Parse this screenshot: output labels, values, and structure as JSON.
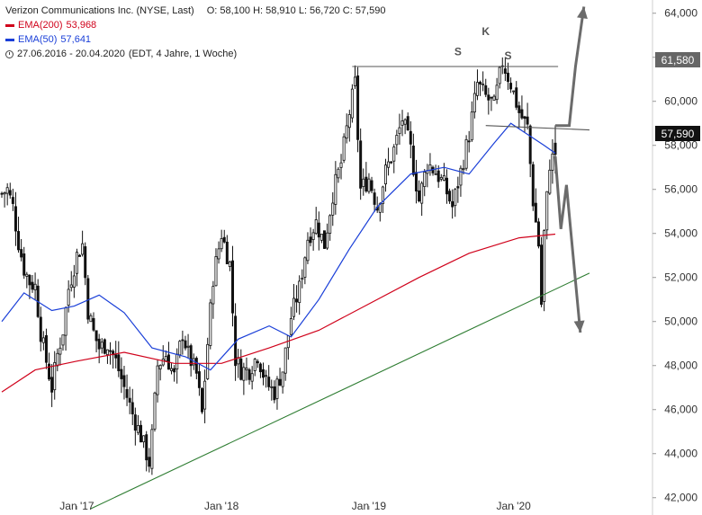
{
  "legend": {
    "title": "Verizon Communications Inc. (NYSE, Last)",
    "ohlc": "O: 58,100  H: 58,910  L: 56,720  C: 57,590",
    "ema200_label": "EMA(200)",
    "ema200_value": "53,968",
    "ema50_label": "EMA(50)",
    "ema50_value": "57,641",
    "period": "27.06.2016 - 20.04.2020",
    "period_detail": "(EDT, 4 Jahre, 1 Woche)",
    "colors": {
      "ema200": "#d0021b",
      "ema50": "#1a3fd8",
      "trend": "#2e7d32",
      "arrow": "#6b6b6b"
    }
  },
  "annotations": {
    "s1": "S",
    "k": "K",
    "s2": "S"
  },
  "price_tags": {
    "resistance": "61,580",
    "last": "57,590"
  },
  "chart_data": {
    "type": "candlestick",
    "title": "Verizon Communications Inc. (NYSE, Last)",
    "interval": "1 Woche",
    "x_range": [
      "2016-06-27",
      "2020-04-20"
    ],
    "y_range": [
      41.5,
      64.6
    ],
    "y_ticks": [
      "42,000",
      "44,000",
      "46,000",
      "48,000",
      "50,000",
      "52,000",
      "54,000",
      "56,000",
      "58,000",
      "60,000",
      "62,000",
      "64,000"
    ],
    "x_ticks": [
      "Jan '17",
      "Jan '18",
      "Jan '19",
      "Jan '20"
    ],
    "close_path": [
      [
        "2016-06-27",
        55.8
      ],
      [
        "2016-07-11",
        56.0
      ],
      [
        "2016-07-25",
        55.2
      ],
      [
        "2016-08-08",
        53.6
      ],
      [
        "2016-08-22",
        52.4
      ],
      [
        "2016-09-05",
        51.8
      ],
      [
        "2016-09-19",
        51.6
      ],
      [
        "2016-10-03",
        49.5
      ],
      [
        "2016-10-17",
        48.2
      ],
      [
        "2016-10-31",
        47.0
      ],
      [
        "2016-11-14",
        48.5
      ],
      [
        "2016-11-28",
        49.6
      ],
      [
        "2016-12-12",
        51.5
      ],
      [
        "2017-01-02",
        53.0
      ],
      [
        "2017-01-16",
        53.5
      ],
      [
        "2017-01-30",
        50.5
      ],
      [
        "2017-02-13",
        49.5
      ],
      [
        "2017-02-27",
        48.8
      ],
      [
        "2017-03-20",
        49.0
      ],
      [
        "2017-04-10",
        48.2
      ],
      [
        "2017-05-01",
        47.0
      ],
      [
        "2017-05-22",
        45.8
      ],
      [
        "2017-06-12",
        44.8
      ],
      [
        "2017-07-03",
        43.6
      ],
      [
        "2017-07-10",
        44.8
      ],
      [
        "2017-07-24",
        48.0
      ],
      [
        "2017-08-14",
        48.5
      ],
      [
        "2017-09-04",
        47.5
      ],
      [
        "2017-09-25",
        49.5
      ],
      [
        "2017-10-09",
        48.5
      ],
      [
        "2017-10-30",
        47.6
      ],
      [
        "2017-11-13",
        45.8
      ],
      [
        "2017-11-27",
        49.0
      ],
      [
        "2017-12-11",
        52.0
      ],
      [
        "2018-01-01",
        54.0
      ],
      [
        "2018-01-22",
        52.6
      ],
      [
        "2018-02-05",
        48.3
      ],
      [
        "2018-02-19",
        47.8
      ],
      [
        "2018-03-12",
        47.8
      ],
      [
        "2018-04-02",
        48.5
      ],
      [
        "2018-04-23",
        47.2
      ],
      [
        "2018-05-14",
        46.8
      ],
      [
        "2018-06-04",
        47.8
      ],
      [
        "2018-06-25",
        50.2
      ],
      [
        "2018-07-16",
        51.5
      ],
      [
        "2018-08-06",
        53.8
      ],
      [
        "2018-08-27",
        54.5
      ],
      [
        "2018-09-17",
        53.5
      ],
      [
        "2018-10-08",
        55.8
      ],
      [
        "2018-10-29",
        57.2
      ],
      [
        "2018-11-19",
        59.5
      ],
      [
        "2018-12-03",
        60.8
      ],
      [
        "2018-12-17",
        56.0
      ],
      [
        "2019-01-07",
        56.5
      ],
      [
        "2019-01-28",
        55.2
      ],
      [
        "2019-02-18",
        56.8
      ],
      [
        "2019-03-11",
        57.8
      ],
      [
        "2019-04-01",
        59.2
      ],
      [
        "2019-04-22",
        57.8
      ],
      [
        "2019-05-13",
        55.5
      ],
      [
        "2019-06-03",
        57.2
      ],
      [
        "2019-06-24",
        56.8
      ],
      [
        "2019-07-15",
        56.2
      ],
      [
        "2019-08-05",
        55.2
      ],
      [
        "2019-08-26",
        56.8
      ],
      [
        "2019-09-16",
        58.5
      ],
      [
        "2019-10-07",
        60.8
      ],
      [
        "2019-10-28",
        60.2
      ],
      [
        "2019-11-18",
        59.8
      ],
      [
        "2019-12-09",
        61.8
      ],
      [
        "2019-12-30",
        60.8
      ],
      [
        "2020-01-20",
        59.5
      ],
      [
        "2020-02-10",
        58.8
      ],
      [
        "2020-02-24",
        55.5
      ],
      [
        "2020-03-09",
        53.5
      ],
      [
        "2020-03-16",
        50.8
      ],
      [
        "2020-03-23",
        54.0
      ],
      [
        "2020-04-06",
        57.2
      ],
      [
        "2020-04-20",
        57.59
      ]
    ],
    "last_candle": {
      "date": "2020-04-20",
      "open": 58.1,
      "high": 58.91,
      "low": 56.72,
      "close": 57.59
    },
    "series": [
      {
        "name": "EMA(200)",
        "color": "#d0021b",
        "points": [
          [
            "2016-06-27",
            46.8
          ],
          [
            "2016-09-19",
            47.8
          ],
          [
            "2017-01-02",
            48.2
          ],
          [
            "2017-05-01",
            48.6
          ],
          [
            "2017-09-04",
            48.1
          ],
          [
            "2018-01-01",
            48.1
          ],
          [
            "2018-05-01",
            48.8
          ],
          [
            "2018-09-03",
            49.6
          ],
          [
            "2019-01-07",
            50.8
          ],
          [
            "2019-05-13",
            52.0
          ],
          [
            "2019-09-16",
            53.1
          ],
          [
            "2020-01-20",
            53.8
          ],
          [
            "2020-04-20",
            53.968
          ]
        ]
      },
      {
        "name": "EMA(50)",
        "color": "#1a3fd8",
        "points": [
          [
            "2016-06-27",
            50.0
          ],
          [
            "2016-08-22",
            51.3
          ],
          [
            "2016-10-31",
            50.5
          ],
          [
            "2016-12-26",
            50.7
          ],
          [
            "2017-02-27",
            51.2
          ],
          [
            "2017-05-01",
            50.4
          ],
          [
            "2017-07-10",
            48.8
          ],
          [
            "2017-10-02",
            48.4
          ],
          [
            "2017-12-04",
            47.8
          ],
          [
            "2018-02-12",
            49.2
          ],
          [
            "2018-05-01",
            49.8
          ],
          [
            "2018-06-25",
            49.3
          ],
          [
            "2018-09-03",
            51.0
          ],
          [
            "2018-11-19",
            53.3
          ],
          [
            "2019-01-28",
            55.2
          ],
          [
            "2019-04-22",
            56.7
          ],
          [
            "2019-07-15",
            57.0
          ],
          [
            "2019-09-16",
            56.7
          ],
          [
            "2019-11-18",
            58.1
          ],
          [
            "2019-12-30",
            59.0
          ],
          [
            "2020-02-10",
            58.5
          ],
          [
            "2020-03-23",
            58.0
          ],
          [
            "2020-04-20",
            57.641
          ]
        ]
      }
    ],
    "trend_lines": [
      {
        "name": "resistance",
        "from": [
          "2018-11-26",
          61.58
        ],
        "to": [
          "2020-04-27",
          61.58
        ],
        "color": "#555555"
      },
      {
        "name": "neckline",
        "from": [
          "2019-10-28",
          58.9
        ],
        "to": [
          "2020-07-15",
          58.7
        ],
        "color": "#555555"
      },
      {
        "name": "support",
        "from": [
          "2017-02-06",
          41.5
        ],
        "to": [
          "2020-07-15",
          52.2
        ],
        "color": "#2e7d32"
      }
    ],
    "scenario_arrows": [
      {
        "name": "bullish",
        "points": [
          [
            "2020-04-20",
            58.9
          ],
          [
            "2020-05-25",
            58.9
          ],
          [
            "2020-06-10",
            61.6
          ],
          [
            "2020-07-01",
            64.3
          ]
        ]
      },
      {
        "name": "bearish",
        "points": [
          [
            "2020-04-20",
            57.5
          ],
          [
            "2020-05-04",
            54.2
          ],
          [
            "2020-05-18",
            56.2
          ],
          [
            "2020-06-22",
            49.5
          ]
        ]
      }
    ]
  }
}
